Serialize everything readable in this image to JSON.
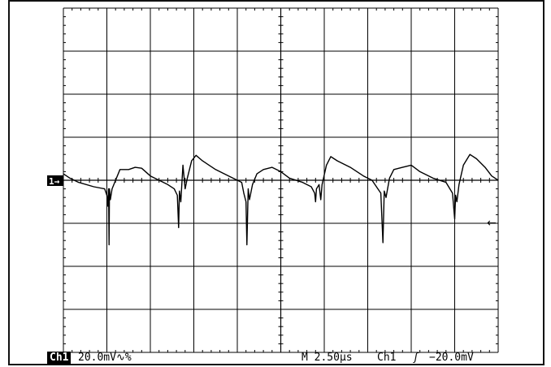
{
  "status": {
    "channel": "Ch1",
    "vertical_scale": "20.0mV",
    "coupling_symbols": "∿%",
    "timebase": "M 2.50µs",
    "trigger_source": "Ch1",
    "trigger_slope": "ʃ",
    "trigger_level": "−20.0mV"
  },
  "ground_marker": "1→",
  "trigger_marker": "←",
  "colors": {
    "trace": "#000000",
    "grid": "#000000",
    "background": "#ffffff"
  },
  "chart_data": {
    "type": "line",
    "title": "",
    "xlabel": "",
    "ylabel": "",
    "x_unit": "div",
    "y_unit": "div",
    "xlim": [
      0,
      10
    ],
    "ylim": [
      -4,
      4
    ],
    "x_divisions": 10,
    "y_divisions": 8,
    "grid": true,
    "ground_level": 0,
    "trigger_level": -1,
    "series": [
      {
        "points": [
          [
            0,
            0.15
          ],
          [
            0.15,
            0.05
          ],
          [
            0.35,
            -0.05
          ],
          [
            0.7,
            -0.15
          ],
          [
            0.95,
            -0.2
          ],
          [
            1.0,
            -0.35
          ],
          [
            1.02,
            -0.6
          ],
          [
            1.04,
            -0.2
          ],
          [
            1.05,
            -1.5
          ],
          [
            1.06,
            -0.2
          ],
          [
            1.08,
            -0.45
          ],
          [
            1.12,
            -0.2
          ],
          [
            1.22,
            0.05
          ],
          [
            1.3,
            0.25
          ],
          [
            1.5,
            0.25
          ],
          [
            1.65,
            0.3
          ],
          [
            1.8,
            0.28
          ],
          [
            2.0,
            0.1
          ],
          [
            2.2,
            0.0
          ],
          [
            2.4,
            -0.1
          ],
          [
            2.55,
            -0.2
          ],
          [
            2.62,
            -0.35
          ],
          [
            2.65,
            -1.1
          ],
          [
            2.67,
            -0.25
          ],
          [
            2.7,
            -0.5
          ],
          [
            2.75,
            0.35
          ],
          [
            2.8,
            -0.2
          ],
          [
            2.85,
            0.05
          ],
          [
            2.95,
            0.45
          ],
          [
            3.05,
            0.58
          ],
          [
            3.2,
            0.45
          ],
          [
            3.5,
            0.25
          ],
          [
            3.8,
            0.1
          ],
          [
            4.1,
            -0.05
          ],
          [
            4.15,
            -0.3
          ],
          [
            4.2,
            -0.5
          ],
          [
            4.22,
            -1.5
          ],
          [
            4.25,
            -0.2
          ],
          [
            4.28,
            -0.45
          ],
          [
            4.35,
            -0.1
          ],
          [
            4.45,
            0.15
          ],
          [
            4.6,
            0.25
          ],
          [
            4.8,
            0.3
          ],
          [
            5.0,
            0.2
          ],
          [
            5.2,
            0.05
          ],
          [
            5.5,
            -0.05
          ],
          [
            5.7,
            -0.15
          ],
          [
            5.78,
            -0.3
          ],
          [
            5.8,
            -0.5
          ],
          [
            5.82,
            -0.2
          ],
          [
            5.88,
            -0.1
          ],
          [
            5.92,
            -0.45
          ],
          [
            5.95,
            -0.1
          ],
          [
            6.05,
            0.35
          ],
          [
            6.15,
            0.55
          ],
          [
            6.3,
            0.45
          ],
          [
            6.6,
            0.3
          ],
          [
            6.9,
            0.1
          ],
          [
            7.1,
            0.0
          ],
          [
            7.2,
            -0.15
          ],
          [
            7.3,
            -0.3
          ],
          [
            7.35,
            -1.45
          ],
          [
            7.38,
            -0.25
          ],
          [
            7.42,
            -0.4
          ],
          [
            7.5,
            0.05
          ],
          [
            7.6,
            0.25
          ],
          [
            7.8,
            0.3
          ],
          [
            8.0,
            0.35
          ],
          [
            8.2,
            0.2
          ],
          [
            8.5,
            0.05
          ],
          [
            8.8,
            -0.05
          ],
          [
            8.95,
            -0.3
          ],
          [
            9.0,
            -0.9
          ],
          [
            9.02,
            -0.35
          ],
          [
            9.05,
            -0.5
          ],
          [
            9.1,
            -0.1
          ],
          [
            9.2,
            0.35
          ],
          [
            9.35,
            0.6
          ],
          [
            9.5,
            0.5
          ],
          [
            9.7,
            0.3
          ],
          [
            9.85,
            0.1
          ],
          [
            10.0,
            0.0
          ]
        ]
      }
    ]
  }
}
